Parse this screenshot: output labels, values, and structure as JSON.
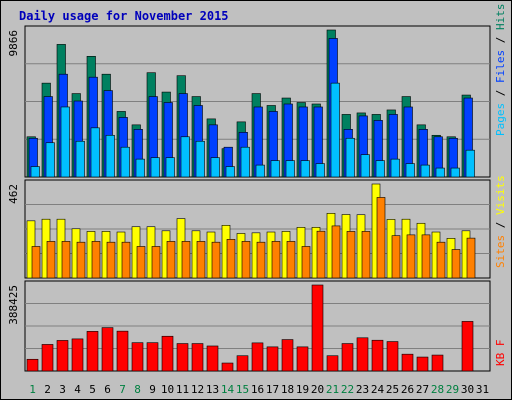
{
  "title": "Daily usage for November 2015",
  "colors": {
    "background": "#c0c0c0",
    "pages": "#00c0ff",
    "files": "#0040ff",
    "hits": "#008060",
    "visits": "#ffff00",
    "sites": "#ff8000",
    "kbytes": "#ff0000",
    "weekend_label": "#008040",
    "title": "#0000bb"
  },
  "legend": {
    "pages": "Pages",
    "files": "Files",
    "hits": "Hits",
    "visits": "Visits",
    "sites": "Sites",
    "kbytes": "KB F",
    "separator": " / "
  },
  "chart_data": [
    {
      "type": "bar",
      "panel": "hits-files-pages",
      "scale_label": "9866",
      "ylim": [
        0,
        9866
      ],
      "categories": [
        "1",
        "2",
        "3",
        "4",
        "5",
        "6",
        "7",
        "8",
        "9",
        "10",
        "11",
        "12",
        "13",
        "14",
        "15",
        "16",
        "17",
        "18",
        "19",
        "20",
        "21",
        "22",
        "23",
        "24",
        "25",
        "26",
        "27",
        "28",
        "29",
        "30",
        "31"
      ],
      "weekend_days": [
        "1",
        "7",
        "8",
        "14",
        "15",
        "21",
        "22",
        "28",
        "29"
      ],
      "series": [
        {
          "name": "Hits",
          "values": [
            2700,
            6300,
            8900,
            5600,
            8100,
            6900,
            4400,
            3500,
            7000,
            5700,
            6800,
            5400,
            3900,
            1900,
            3700,
            5600,
            4800,
            5300,
            5000,
            4900,
            9866,
            4200,
            4300,
            4200,
            4500,
            5400,
            3500,
            2800,
            2700,
            5500,
            0
          ]
        },
        {
          "name": "Files",
          "values": [
            2600,
            5400,
            6900,
            5100,
            6700,
            5800,
            4000,
            3200,
            5400,
            5000,
            5600,
            4800,
            3500,
            2000,
            3000,
            4700,
            4400,
            4900,
            4700,
            4700,
            9300,
            3200,
            4100,
            3800,
            4200,
            4700,
            3200,
            2700,
            2600,
            5300,
            0
          ]
        },
        {
          "name": "Pages",
          "values": [
            700,
            2300,
            4700,
            2400,
            3300,
            2800,
            2000,
            1200,
            1300,
            1300,
            2700,
            2400,
            1300,
            700,
            2000,
            800,
            1100,
            1100,
            1100,
            900,
            6300,
            2600,
            1500,
            1100,
            1200,
            900,
            800,
            600,
            600,
            1800,
            0
          ]
        }
      ]
    },
    {
      "type": "bar",
      "panel": "visits-sites",
      "scale_label": "462",
      "ylim": [
        0,
        462
      ],
      "categories": [
        "1",
        "2",
        "3",
        "4",
        "5",
        "6",
        "7",
        "8",
        "9",
        "10",
        "11",
        "12",
        "13",
        "14",
        "15",
        "16",
        "17",
        "18",
        "19",
        "20",
        "21",
        "22",
        "23",
        "24",
        "25",
        "26",
        "27",
        "28",
        "29",
        "30",
        "31"
      ],
      "series": [
        {
          "name": "Visits",
          "values": [
            281,
            289,
            289,
            242,
            229,
            229,
            226,
            252,
            252,
            232,
            292,
            232,
            226,
            259,
            219,
            222,
            226,
            229,
            249,
            249,
            318,
            312,
            311,
            462,
            288,
            289,
            269,
            226,
            195,
            232,
            0
          ]
        },
        {
          "name": "Sites",
          "values": [
            155,
            180,
            180,
            176,
            180,
            176,
            176,
            155,
            155,
            180,
            180,
            180,
            176,
            190,
            180,
            176,
            180,
            180,
            155,
            230,
            256,
            229,
            229,
            396,
            208,
            212,
            212,
            176,
            140,
            196,
            0
          ]
        }
      ]
    },
    {
      "type": "bar",
      "panel": "kbytes",
      "scale_label": "388425",
      "ylim": [
        0,
        388425
      ],
      "categories": [
        "1",
        "2",
        "3",
        "4",
        "5",
        "6",
        "7",
        "8",
        "9",
        "10",
        "11",
        "12",
        "13",
        "14",
        "15",
        "16",
        "17",
        "18",
        "19",
        "20",
        "21",
        "22",
        "23",
        "24",
        "25",
        "26",
        "27",
        "28",
        "29",
        "30",
        "31"
      ],
      "series": [
        {
          "name": "KB F",
          "values": [
            53000,
            120000,
            138000,
            145000,
            179000,
            196000,
            180000,
            128000,
            128000,
            157000,
            124000,
            124000,
            113000,
            36000,
            69000,
            127000,
            109000,
            142000,
            109000,
            388425,
            69000,
            124000,
            150000,
            139000,
            133000,
            76000,
            63000,
            72000,
            0,
            224000,
            0
          ]
        }
      ]
    }
  ]
}
